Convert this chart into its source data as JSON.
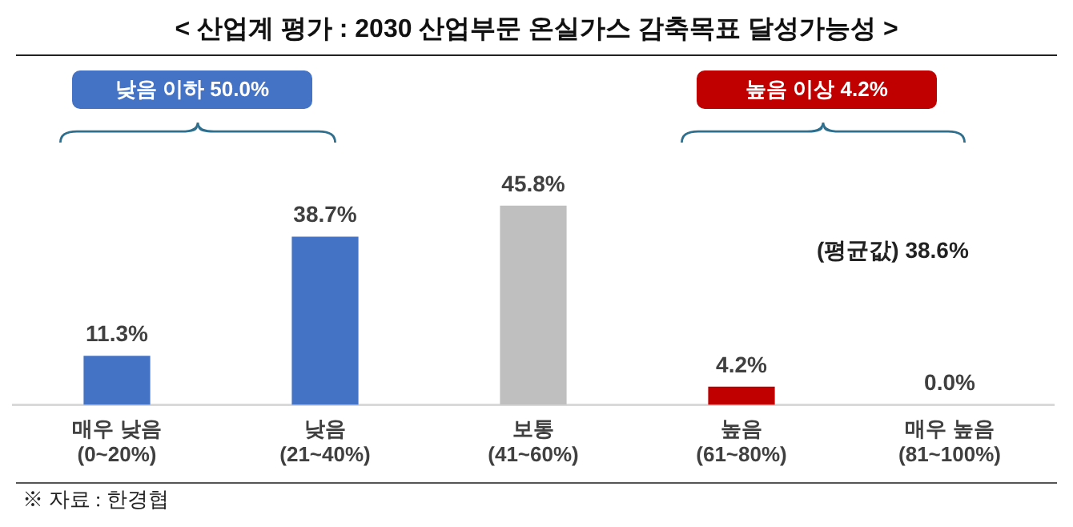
{
  "chart_data": {
    "type": "bar",
    "title": "< 산업계 평가 : 2030 산업부문 온실가스 감축목표 달성가능성 >",
    "categories": [
      "매우 낮음\n(0~20%)",
      "낮음\n(21~40%)",
      "보통\n(41~60%)",
      "높음\n(61~80%)",
      "매우 높음\n(81~100%)"
    ],
    "values": [
      11.3,
      38.7,
      45.8,
      4.2,
      0.0
    ],
    "colors": [
      "#4472c4",
      "#4472c4",
      "#bfbfbf",
      "#c00000",
      "#c00000"
    ],
    "value_labels": [
      "11.3%",
      "38.7%",
      "45.8%",
      "4.2%",
      "0.0%"
    ],
    "annotations": [
      "낮음 이하 50.0%",
      "높음 이상 4.2%",
      "(평균값) 38.6%",
      "※ 자료 : 한경협"
    ],
    "grid": false,
    "legend": false
  }
}
